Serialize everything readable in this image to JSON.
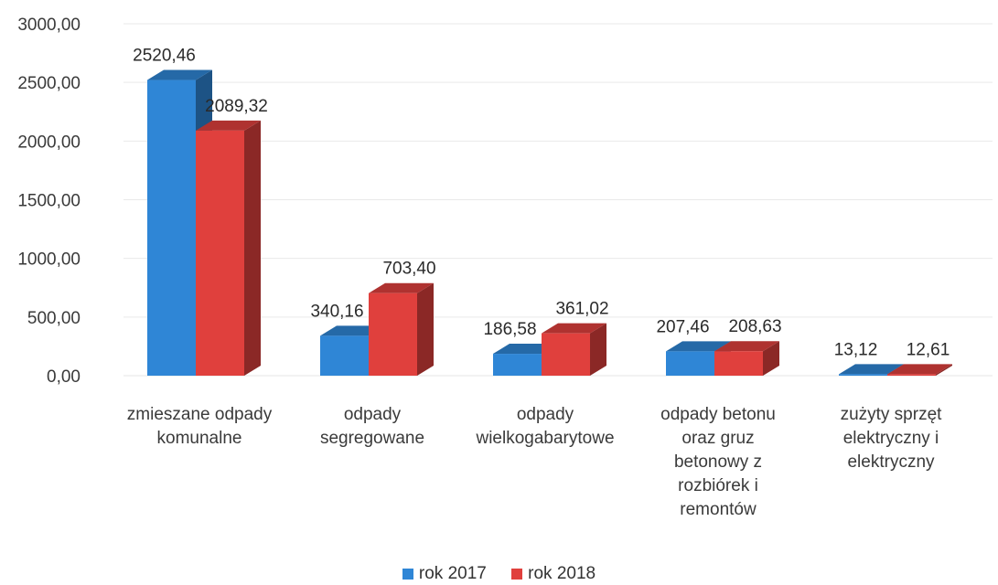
{
  "chart_data": {
    "type": "bar",
    "categories": [
      "zmieszane odpady komunalne",
      "odpady segregowane",
      "odpady wielkogabarytowe",
      "odpady betonu oraz gruz betonowy z rozbiórek i remontów",
      "zużyty sprzęt elektryczny i elektryczny"
    ],
    "series": [
      {
        "name": "rok 2017",
        "color": "#2f86d6",
        "values": [
          2520.46,
          340.16,
          186.58,
          207.46,
          13.12
        ],
        "labels": [
          "2520,46",
          "340,16",
          "186,58",
          "207,46",
          "13,12"
        ]
      },
      {
        "name": "rok 2018",
        "color": "#e0403d",
        "values": [
          2089.32,
          703.4,
          361.02,
          208.63,
          12.61
        ],
        "labels": [
          "2089,32",
          "703,40",
          "361,02",
          "208,63",
          "12,61"
        ]
      }
    ],
    "ylim": [
      0,
      3000
    ],
    "yticks": [
      0,
      500,
      1000,
      1500,
      2000,
      2500,
      3000
    ],
    "ytick_labels": [
      "0,00",
      "500,00",
      "1000,00",
      "1500,00",
      "2000,00",
      "2500,00",
      "3000,00"
    ],
    "grid": true,
    "legend_position": "bottom",
    "style": "3d-bar"
  },
  "category_lines": [
    [
      "zmieszane odpady",
      "komunalne"
    ],
    [
      "odpady",
      "segregowane"
    ],
    [
      "odpady",
      "wielkogabarytowe"
    ],
    [
      "odpady betonu",
      "oraz gruz",
      "betonowy z",
      "rozbiórek i",
      "remontów"
    ],
    [
      "zużyty sprzęt",
      "elektryczny i",
      "elektryczny"
    ]
  ]
}
